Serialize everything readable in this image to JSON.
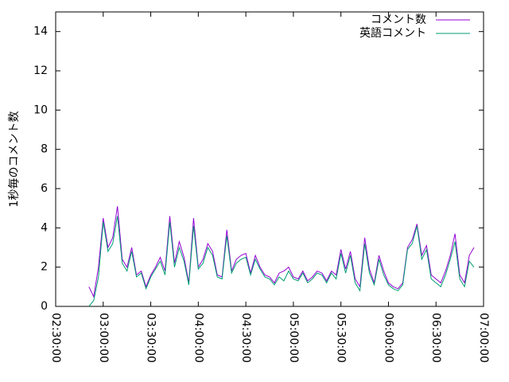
{
  "chart_data": {
    "type": "line",
    "y_label": "1秒毎のコメント数",
    "x": [
      "02:51:00",
      "02:54:00",
      "02:57:00",
      "03:00:00",
      "03:03:00",
      "03:06:00",
      "03:09:00",
      "03:12:00",
      "03:15:00",
      "03:18:00",
      "03:21:00",
      "03:24:00",
      "03:27:00",
      "03:30:00",
      "03:33:00",
      "03:36:00",
      "03:39:00",
      "03:42:00",
      "03:45:00",
      "03:48:00",
      "03:51:00",
      "03:54:00",
      "03:57:00",
      "04:00:00",
      "04:03:00",
      "04:06:00",
      "04:09:00",
      "04:12:00",
      "04:15:00",
      "04:18:00",
      "04:21:00",
      "04:24:00",
      "04:27:00",
      "04:30:00",
      "04:33:00",
      "04:36:00",
      "04:39:00",
      "04:42:00",
      "04:45:00",
      "04:48:00",
      "04:51:00",
      "04:54:00",
      "04:57:00",
      "05:00:00",
      "05:03:00",
      "05:06:00",
      "05:09:00",
      "05:12:00",
      "05:15:00",
      "05:18:00",
      "05:21:00",
      "05:24:00",
      "05:27:00",
      "05:30:00",
      "05:33:00",
      "05:36:00",
      "05:39:00",
      "05:42:00",
      "05:45:00",
      "05:48:00",
      "05:51:00",
      "05:54:00",
      "05:57:00",
      "06:00:00",
      "06:03:00",
      "06:06:00",
      "06:09:00",
      "06:12:00",
      "06:15:00",
      "06:18:00",
      "06:21:00",
      "06:24:00",
      "06:27:00",
      "06:30:00",
      "06:33:00",
      "06:36:00",
      "06:39:00",
      "06:42:00",
      "06:45:00",
      "06:48:00",
      "06:51:00",
      "06:54:00"
    ],
    "series": [
      {
        "name": "コメント数",
        "color": "#9400d3",
        "values": [
          1.0,
          0.5,
          2.0,
          4.5,
          3.0,
          3.5,
          5.1,
          2.4,
          2.0,
          3.0,
          1.6,
          1.8,
          1.0,
          1.6,
          2.0,
          2.5,
          1.8,
          4.6,
          2.2,
          3.3,
          2.5,
          1.2,
          4.5,
          2.0,
          2.4,
          3.2,
          2.8,
          1.6,
          1.5,
          3.9,
          1.8,
          2.4,
          2.6,
          2.7,
          1.7,
          2.6,
          2.0,
          1.6,
          1.5,
          1.2,
          1.7,
          1.8,
          2.0,
          1.5,
          1.4,
          1.8,
          1.3,
          1.5,
          1.8,
          1.7,
          1.3,
          1.8,
          1.6,
          2.9,
          1.9,
          2.8,
          1.4,
          1.0,
          3.5,
          1.9,
          1.2,
          2.6,
          1.8,
          1.2,
          1.0,
          0.9,
          1.2,
          3.0,
          3.4,
          4.2,
          2.6,
          3.1,
          1.6,
          1.4,
          1.2,
          1.8,
          2.6,
          3.7,
          1.6,
          1.2,
          2.6,
          3.0
        ]
      },
      {
        "name": "英語コメント",
        "color": "#009e73",
        "values": [
          0.0,
          0.3,
          1.5,
          4.3,
          2.8,
          3.2,
          4.6,
          2.2,
          1.8,
          2.8,
          1.5,
          1.7,
          0.9,
          1.5,
          1.9,
          2.3,
          1.6,
          4.3,
          2.0,
          3.0,
          2.3,
          1.1,
          4.1,
          1.9,
          2.2,
          3.0,
          2.6,
          1.5,
          1.4,
          3.6,
          1.7,
          2.2,
          2.4,
          2.5,
          1.6,
          2.4,
          1.9,
          1.5,
          1.4,
          1.1,
          1.5,
          1.3,
          1.8,
          1.4,
          1.3,
          1.7,
          1.2,
          1.4,
          1.7,
          1.6,
          1.2,
          1.7,
          1.4,
          2.7,
          1.7,
          2.6,
          1.2,
          0.8,
          3.2,
          1.7,
          1.1,
          2.4,
          1.6,
          1.1,
          0.9,
          0.8,
          1.1,
          2.9,
          3.2,
          4.1,
          2.4,
          2.9,
          1.4,
          1.2,
          1.0,
          1.6,
          2.4,
          3.3,
          1.4,
          1.0,
          2.3,
          2.0
        ]
      }
    ],
    "xlim": [
      "02:30:00",
      "07:00:00"
    ],
    "xticks": [
      "02:30:00",
      "03:00:00",
      "03:30:00",
      "04:00:00",
      "04:30:00",
      "05:00:00",
      "05:30:00",
      "06:00:00",
      "06:30:00",
      "07:00:00"
    ],
    "ylim": [
      0,
      15
    ],
    "yticks": [
      0,
      2,
      4,
      6,
      8,
      10,
      12,
      14
    ],
    "legend": "top-right",
    "grid": false
  }
}
